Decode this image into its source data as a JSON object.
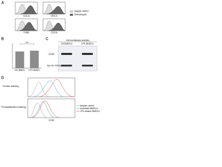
{
  "panel_a": {
    "letter": "A",
    "markers": [
      "CD11c",
      "MHCII",
      "F4/80",
      "CD11b"
    ],
    "legend": [
      "Isotype control",
      "Detecting Ab"
    ]
  },
  "panel_b": {
    "letter": "B",
    "significance": "ns",
    "categories": [
      "Ctrl BMDC",
      "LPS BMDC"
    ],
    "values": [
      1.0,
      1.05
    ],
    "ylim": [
      0,
      1.5
    ],
    "color": "#8c8c8c"
  },
  "panel_c": {
    "letter": "C",
    "header": "Cell membrane proteins",
    "columns": [
      "Ctrl BMDCs",
      "LPS BMDCs"
    ],
    "rows": [
      "CD39",
      "Na+/K+ ATPase"
    ]
  },
  "panel_d": {
    "letter": "D",
    "rows": [
      "Surface staining",
      "Permeabilization staining"
    ],
    "legend": [
      "Isotype control",
      "Untreated BMDCs",
      "LPS treated BMDCs"
    ],
    "x_label": "CD39"
  }
}
